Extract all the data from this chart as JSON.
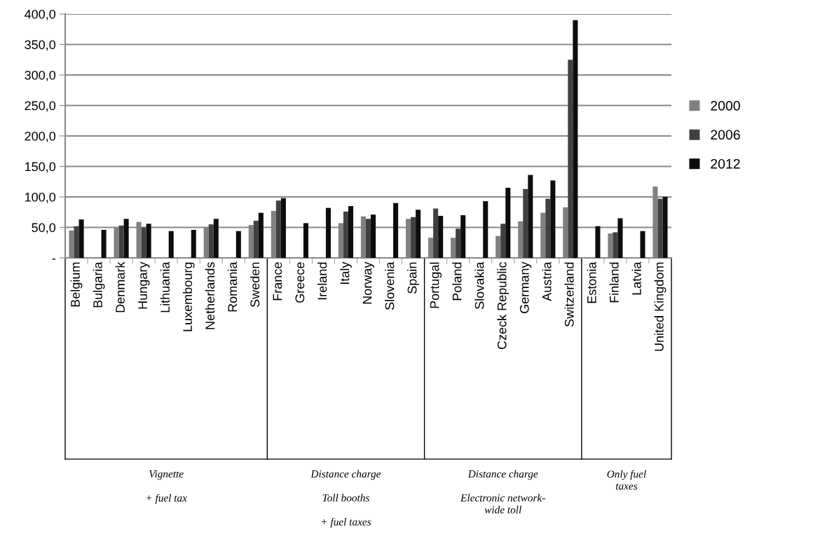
{
  "chart_data": {
    "type": "bar",
    "categories": [
      "Belgium",
      "Bulgaria",
      "Denmark",
      "Hungary",
      "Lithuania",
      "Luxembourg",
      "Netherlands",
      "Romania",
      "Sweden",
      "France",
      "Greece",
      "Ireland",
      "Italy",
      "Norway",
      "Slovenia",
      "Spain",
      "Portugal",
      "Poland",
      "Slovakia",
      "Czeck Republic",
      "Germany",
      "Austria",
      "Switzerland",
      "Estonia",
      "Finland",
      "Latvia",
      "United Kingdom"
    ],
    "series": [
      {
        "name": "2000",
        "color": "#808080",
        "values": [
          45,
          null,
          50,
          59,
          null,
          null,
          50,
          null,
          54,
          77,
          null,
          null,
          57,
          68,
          null,
          64,
          33,
          33,
          null,
          36,
          60,
          74,
          83,
          null,
          40,
          null,
          117
        ]
      },
      {
        "name": "2006",
        "color": "#404040",
        "values": [
          52,
          null,
          53,
          50,
          null,
          null,
          55,
          null,
          61,
          94,
          null,
          null,
          76,
          64,
          null,
          67,
          81,
          48,
          null,
          56,
          113,
          97,
          325,
          null,
          42,
          null,
          97
        ]
      },
      {
        "name": "2012",
        "color": "#0d0d0d",
        "values": [
          63,
          46,
          64,
          56,
          44,
          46,
          64,
          44,
          74,
          98,
          57,
          82,
          85,
          71,
          90,
          79,
          69,
          70,
          93,
          115,
          136,
          127,
          390,
          52,
          65,
          44,
          100
        ]
      }
    ],
    "ylim": [
      0,
      400
    ],
    "yticks": [
      {
        "value": 0,
        "label": "-"
      },
      {
        "value": 50,
        "label": "50,0"
      },
      {
        "value": 100,
        "label": "100,0"
      },
      {
        "value": 150,
        "label": "150,0"
      },
      {
        "value": 200,
        "label": "200,0"
      },
      {
        "value": 250,
        "label": "250,0"
      },
      {
        "value": 300,
        "label": "300,0"
      },
      {
        "value": 350,
        "label": "350,0"
      },
      {
        "value": 400,
        "label": "400,0"
      }
    ],
    "grid": "y",
    "legend": "right",
    "annotations": [
      "Vignette\n\n+ fuel tax",
      "Distance charge\n\nToll booths\n\n+ fuel taxes",
      "Distance charge\n\nElectronic network-\nwide toll",
      "Only fuel\ntaxes"
    ]
  }
}
